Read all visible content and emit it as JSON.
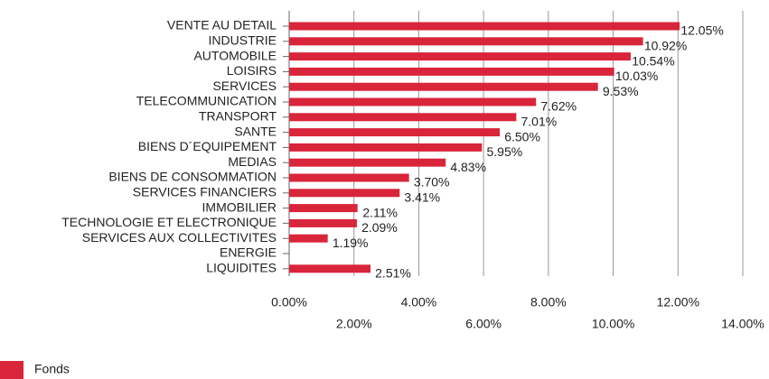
{
  "chart_data": {
    "type": "hbar",
    "categories": [
      "VENTE AU DETAIL",
      "INDUSTRIE",
      "AUTOMOBILE",
      "LOISIRS",
      "SERVICES",
      "TELECOMMUNICATION",
      "TRANSPORT",
      "SANTE",
      "BIENS D´EQUIPEMENT",
      "MEDIAS",
      "BIENS DE CONSOMMATION",
      "SERVICES FINANCIERS",
      "IMMOBILIER",
      "TECHNOLOGIE ET ELECTRONIQUE",
      "SERVICES AUX COLLECTIVITES",
      "ENERGIE",
      "LIQUIDITES"
    ],
    "series": [
      {
        "name": "Fonds",
        "color": "#d9253a",
        "values": [
          12.05,
          10.92,
          10.54,
          10.03,
          9.53,
          7.62,
          7.01,
          6.5,
          5.95,
          4.83,
          3.7,
          3.41,
          2.11,
          2.09,
          1.19,
          null,
          2.51
        ],
        "value_labels": [
          "12.05%",
          "10.92%",
          "10.54%",
          "10.03%",
          "9.53%",
          "7.62%",
          "7.01%",
          "6.50%",
          "5.95%",
          "4.83%",
          "3.70%",
          "3.41%",
          "2.11%",
          "2.09%",
          "1.19%",
          null,
          "2.51%"
        ]
      }
    ],
    "xlim": [
      0,
      14
    ],
    "xticks": [
      {
        "value": 0,
        "label": "0.00%"
      },
      {
        "value": 2,
        "label": "2.00%"
      },
      {
        "value": 4,
        "label": "4.00%"
      },
      {
        "value": 6,
        "label": "6.00%"
      },
      {
        "value": 8,
        "label": "8.00%"
      },
      {
        "value": 10,
        "label": "10.00%"
      },
      {
        "value": 12,
        "label": "12.00%"
      },
      {
        "value": 14,
        "label": "14.00%"
      }
    ],
    "grid": true,
    "legend": "bottom-left"
  }
}
